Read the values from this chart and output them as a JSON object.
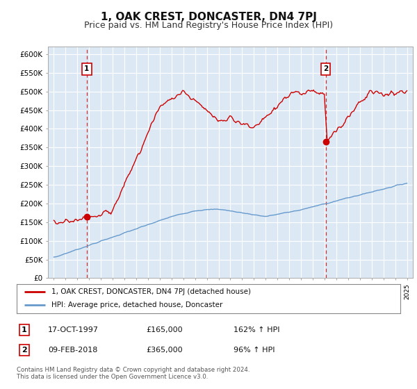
{
  "title": "1, OAK CREST, DONCASTER, DN4 7PJ",
  "subtitle": "Price paid vs. HM Land Registry's House Price Index (HPI)",
  "price_color": "#cc0000",
  "hpi_color": "#6699cc",
  "point1_date": 1997.8,
  "point1_price": 165000,
  "point2_date": 2018.1,
  "point2_price": 365000,
  "marker_label1": "1",
  "marker_label2": "2",
  "legend_line1": "1, OAK CREST, DONCASTER, DN4 7PJ (detached house)",
  "legend_line2": "HPI: Average price, detached house, Doncaster",
  "table_row1": [
    "1",
    "17-OCT-1997",
    "£165,000",
    "162% ↑ HPI"
  ],
  "table_row2": [
    "2",
    "09-FEB-2018",
    "£365,000",
    "96% ↑ HPI"
  ],
  "footer": "Contains HM Land Registry data © Crown copyright and database right 2024.\nThis data is licensed under the Open Government Licence v3.0.",
  "background_color": "#ffffff",
  "plot_bg_color": "#dce9f5",
  "grid_color": "#ffffff",
  "yticks": [
    0,
    50000,
    100000,
    150000,
    200000,
    250000,
    300000,
    350000,
    400000,
    450000,
    500000,
    550000,
    600000
  ],
  "ytick_labels": [
    "£0",
    "£50K",
    "£100K",
    "£150K",
    "£200K",
    "£250K",
    "£300K",
    "£350K",
    "£400K",
    "£450K",
    "£500K",
    "£550K",
    "£600K"
  ],
  "ylim": [
    0,
    620000
  ],
  "xlim": [
    1994.5,
    2025.5
  ],
  "title_fontsize": 11,
  "subtitle_fontsize": 9
}
